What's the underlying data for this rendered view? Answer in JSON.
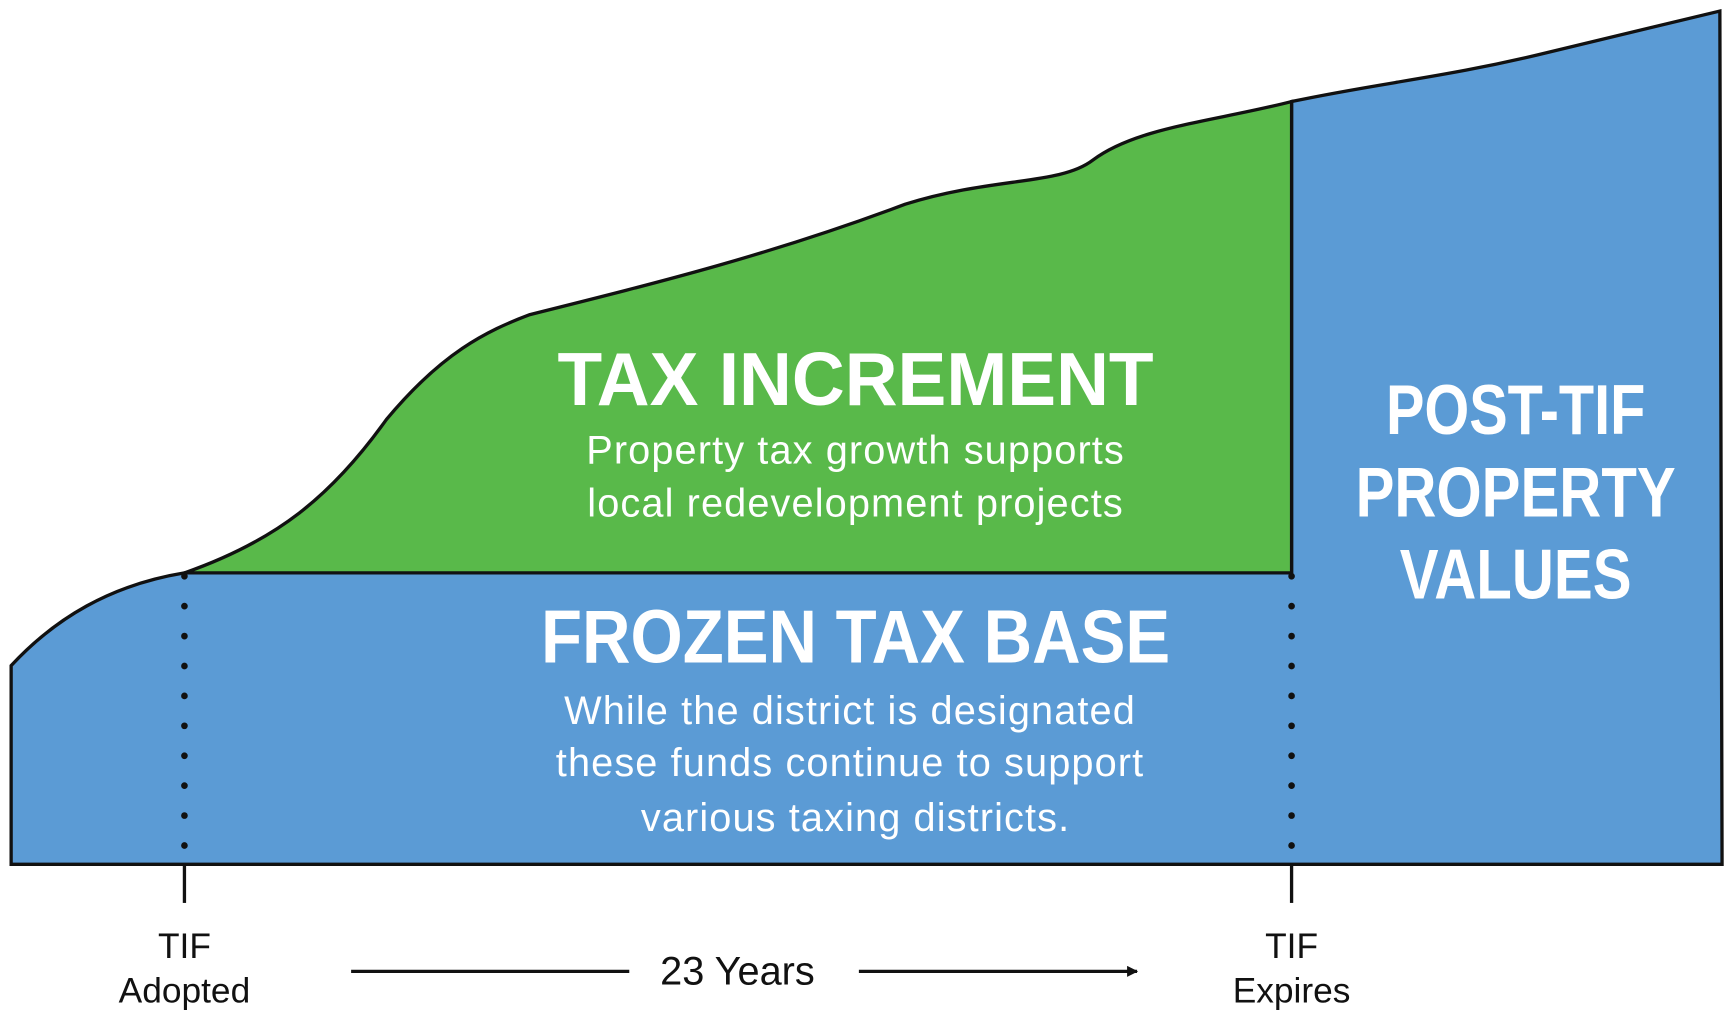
{
  "increment": {
    "title": "TAX  INCREMENT",
    "lines": [
      "Property tax growth supports",
      "local redevelopment projects"
    ]
  },
  "base": {
    "title": "FROZEN TAX BASE",
    "lines": [
      "While the district is designated",
      "these funds continue to support",
      "various taxing districts."
    ]
  },
  "post": {
    "lines": [
      "POST-TIF",
      "PROPERTY",
      "VALUES"
    ]
  },
  "timeline": {
    "start": [
      "TIF",
      "Adopted"
    ],
    "duration": "23 Years",
    "end": [
      "TIF",
      "Expires"
    ]
  }
}
